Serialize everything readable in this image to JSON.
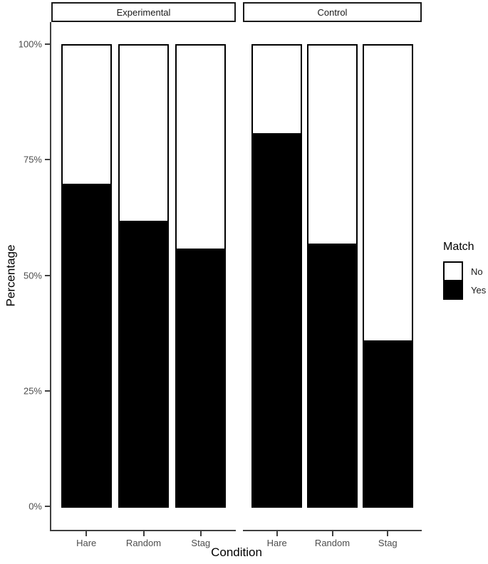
{
  "chart_data": {
    "type": "bar",
    "stacked": true,
    "stack_unit": "percent",
    "title": "",
    "xlabel": "Condition",
    "ylabel": "Percentage",
    "categories": [
      "Hare",
      "Random",
      "Stag"
    ],
    "facets": [
      {
        "label": "Experimental",
        "series": [
          {
            "name": "Yes",
            "values": [
              70,
              62,
              56
            ]
          },
          {
            "name": "No",
            "values": [
              30,
              38,
              44
            ]
          }
        ]
      },
      {
        "label": "Control",
        "series": [
          {
            "name": "Yes",
            "values": [
              81,
              57,
              36
            ]
          },
          {
            "name": "No",
            "values": [
              19,
              43,
              64
            ]
          }
        ]
      }
    ],
    "fill_series": "Yes",
    "y_tick_values": [
      0,
      25,
      50,
      75,
      100
    ],
    "y_ticks": [
      "0%",
      "25%",
      "50%",
      "75%",
      "100%"
    ],
    "ylim": [
      0,
      100
    ],
    "grid": false,
    "legend": {
      "title": "Match",
      "position": "right",
      "items": [
        {
          "label": "No",
          "color": "#FFFFFF"
        },
        {
          "label": "Yes",
          "color": "#000000"
        }
      ]
    },
    "colors": {
      "bar_border": "#000000",
      "fill_yes": "#000000",
      "fill_no": "#FFFFFF",
      "axis_text": "#4D4D4D",
      "axis_line": "#404040",
      "strip_border": "#1A1A1A",
      "background": "#FFFFFF"
    }
  }
}
